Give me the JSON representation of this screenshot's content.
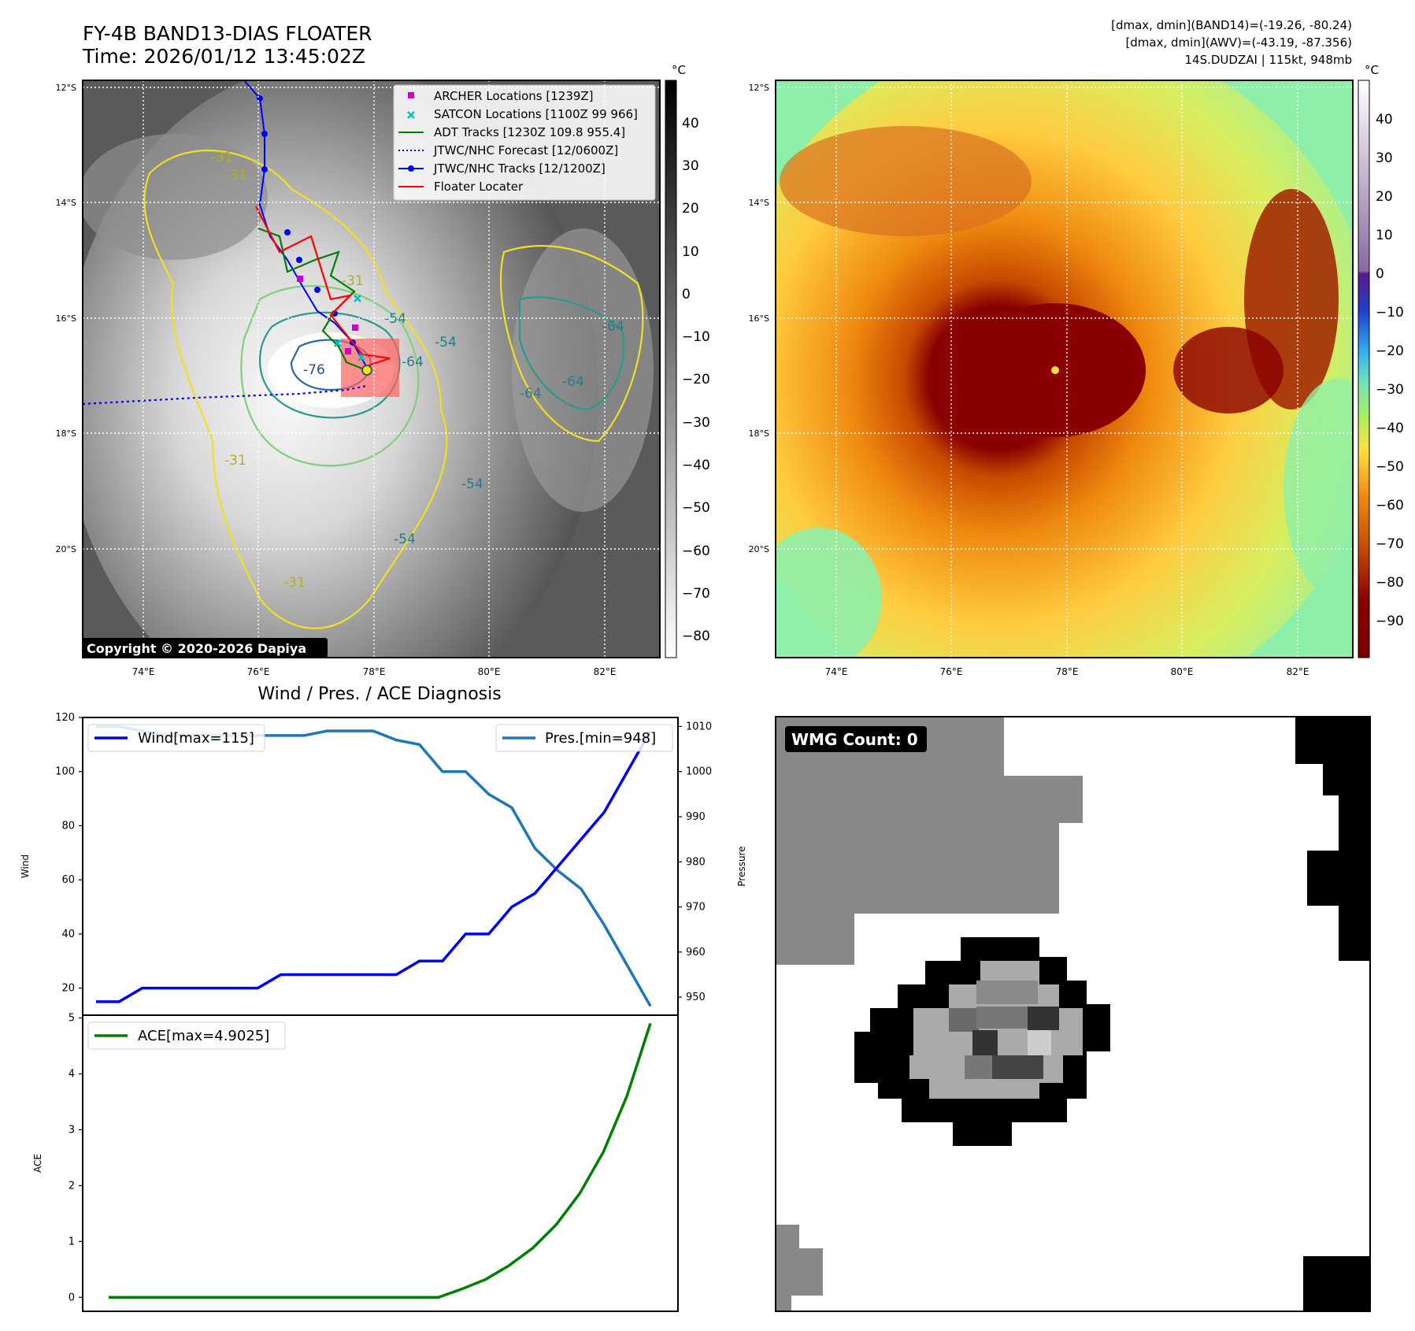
{
  "header": {
    "title_line1": "FY-4B BAND13-DIAS FLOATER",
    "title_line2": "Time: 2026/01/12 13:45:02Z",
    "info_line1": "[dmax, dmin](BAND14)=(-19.26, -80.24)",
    "info_line2": "[dmax, dmin](AWV)=(-43.19, -87.356)",
    "info_line3": "14S.DUDZAI | 115kt, 948mb"
  },
  "map": {
    "lat_labels": [
      "12°S",
      "14°S",
      "16°S",
      "18°S",
      "20°S"
    ],
    "lon_labels": [
      "74°E",
      "76°E",
      "78°E",
      "80°E",
      "82°E"
    ],
    "contour_labels": [
      "-31",
      "-31",
      "-31",
      "-54",
      "-54",
      "-54",
      "-54",
      "-64",
      "-64",
      "-64",
      "-64",
      "-76",
      "-31",
      "-31"
    ],
    "copyright": "Copyright © 2020-2026 Dapiya",
    "legend": [
      {
        "label": "ARCHER Locations [1239Z]",
        "color": "#cc00cc",
        "style": "square"
      },
      {
        "label": "SATCON Locations [1100Z 99 966]",
        "color": "#00bfbf",
        "style": "cross"
      },
      {
        "label": "ADT Tracks [1230Z 109.8 955.4]",
        "color": "#008000",
        "style": "line"
      },
      {
        "label": "JTWC/NHC Forecast [12/0600Z]",
        "color": "#0000ff",
        "style": "dotted"
      },
      {
        "label": "JTWC/NHC Tracks [12/1200Z]",
        "color": "#0000ff",
        "style": "line-dot"
      },
      {
        "label": "Floater Locater",
        "color": "#ff0000",
        "style": "line"
      }
    ]
  },
  "colorbar_left": {
    "unit": "°C",
    "ticks": [
      "40",
      "30",
      "20",
      "10",
      "0",
      "−10",
      "−20",
      "−30",
      "−40",
      "−50",
      "−60",
      "−70",
      "−80"
    ]
  },
  "colorbar_right": {
    "unit": "°C",
    "ticks": [
      "40",
      "30",
      "20",
      "10",
      "0",
      "−10",
      "−20",
      "−30",
      "−40",
      "−50",
      "−60",
      "−70",
      "−80",
      "−90"
    ]
  },
  "diagnosis": {
    "title": "Wind / Pres. / ACE Diagnosis",
    "wind_ylabel": "Wind",
    "pres_ylabel": "Pressure",
    "ace_ylabel": "ACE",
    "wind_ticks": [
      "120",
      "100",
      "80",
      "60",
      "40",
      "20"
    ],
    "pres_ticks": [
      "1010",
      "1000",
      "990",
      "980",
      "970",
      "960",
      "950"
    ],
    "ace_ticks": [
      "5",
      "4",
      "3",
      "2",
      "1",
      "0"
    ],
    "wind_legend": "Wind[max=115]",
    "pres_legend": "Pres.[min=948]",
    "ace_legend": "ACE[max=4.9025]"
  },
  "wmg": {
    "label": "WMG Count: 0"
  },
  "chart_data": [
    {
      "type": "line",
      "title": "Wind / Pres. / ACE Diagnosis",
      "ylabel": "Wind",
      "ylim": [
        10,
        120
      ],
      "series": [
        {
          "name": "Wind[max=115]",
          "color": "#0000ff",
          "axis": "left",
          "values": [
            15,
            15,
            20,
            20,
            20,
            20,
            20,
            20,
            25,
            25,
            25,
            25,
            25,
            25,
            30,
            30,
            40,
            40,
            50,
            55,
            65,
            75,
            85,
            100,
            115
          ]
        },
        {
          "name": "Pres.[min=948]",
          "color": "#1f77b4",
          "axis": "right",
          "ylim": [
            946,
            1012
          ],
          "values": [
            1010,
            1010,
            1009,
            1008,
            1008,
            1008,
            1008,
            1008,
            1008,
            1008,
            1009,
            1009,
            1009,
            1007,
            1006,
            1000,
            1000,
            995,
            992,
            983,
            978,
            974,
            966,
            957,
            948
          ]
        }
      ]
    },
    {
      "type": "line",
      "ylabel": "ACE",
      "ylim": [
        -0.25,
        5.05
      ],
      "series": [
        {
          "name": "ACE[max=4.9025]",
          "color": "#008000",
          "values": [
            0,
            0,
            0,
            0,
            0,
            0,
            0,
            0,
            0,
            0,
            0,
            0,
            0,
            0,
            0,
            0.15,
            0.32,
            0.57,
            0.88,
            1.3,
            1.86,
            2.6,
            3.6,
            4.9025
          ]
        }
      ]
    }
  ]
}
